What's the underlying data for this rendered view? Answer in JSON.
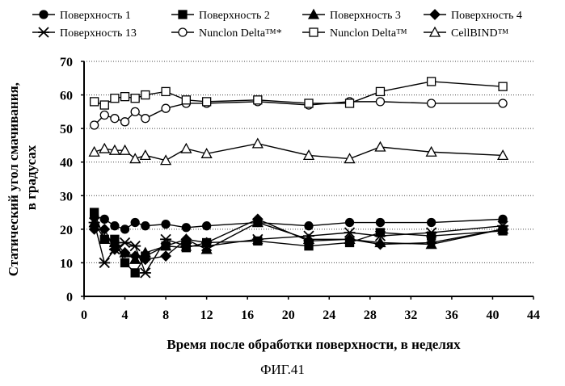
{
  "figure_label": "ФИГ.41",
  "chart_data": {
    "type": "line",
    "title": "",
    "xlabel": "Время после обработки поверхности, в неделях",
    "ylabel": "Статический угол смачивания, в градусах",
    "xlim": [
      0,
      44
    ],
    "ylim": [
      0,
      70
    ],
    "xticks": [
      0,
      4,
      8,
      12,
      16,
      20,
      24,
      28,
      32,
      36,
      40,
      44
    ],
    "yticks": [
      0,
      10,
      20,
      30,
      40,
      50,
      60,
      70
    ],
    "grid": "horizontal dotted",
    "legend_position": "top",
    "series": [
      {
        "name": "Поверхность 1",
        "marker": "circle-filled",
        "x": [
          1,
          2,
          3,
          4,
          5,
          6,
          8,
          10,
          12,
          17,
          22,
          26,
          29,
          34,
          41
        ],
        "y": [
          24,
          23,
          21,
          20,
          22,
          21,
          21.5,
          20.5,
          21,
          22,
          21,
          22,
          22,
          22,
          23
        ]
      },
      {
        "name": "Поверхность 2",
        "marker": "square-filled",
        "x": [
          1,
          2,
          3,
          4,
          5,
          6,
          8,
          10,
          12,
          17,
          22,
          26,
          29,
          34,
          41
        ],
        "y": [
          25,
          17,
          17,
          10,
          7,
          12,
          15,
          14.5,
          16,
          16.5,
          15,
          16,
          19,
          18,
          19.5
        ]
      },
      {
        "name": "Поверхность 3",
        "marker": "triangle-filled",
        "x": [
          1,
          2,
          3,
          4,
          5,
          6,
          8,
          10,
          12,
          17,
          22,
          26,
          29,
          34,
          41
        ],
        "y": [
          22,
          17,
          16,
          13,
          11,
          13,
          15,
          17,
          14,
          22,
          17,
          17,
          16,
          15.5,
          20
        ]
      },
      {
        "name": "Поверхность 4",
        "marker": "diamond-filled",
        "x": [
          1,
          2,
          3,
          4,
          5,
          6,
          8,
          10,
          12,
          17,
          22,
          26,
          29,
          34,
          41
        ],
        "y": [
          20,
          20,
          14,
          13,
          12,
          11,
          12,
          17,
          16,
          23,
          16.5,
          17,
          15.5,
          16,
          20
        ]
      },
      {
        "name": "Поверхность 13",
        "marker": "asterisk",
        "x": [
          1,
          2,
          3,
          4,
          5,
          6,
          8,
          10,
          12,
          17,
          22,
          26,
          29,
          34,
          41
        ],
        "y": [
          22,
          10,
          14,
          16,
          15,
          7,
          17,
          15,
          15,
          17,
          18,
          19,
          18,
          19,
          21
        ]
      },
      {
        "name": "Nunclon Delta™*",
        "marker": "circle-open",
        "x": [
          1,
          2,
          3,
          4,
          5,
          6,
          8,
          10,
          12,
          17,
          22,
          26,
          29,
          34,
          41
        ],
        "y": [
          51,
          54,
          53,
          52,
          55,
          53,
          56,
          57.5,
          57.5,
          58,
          57,
          58,
          58,
          57.5,
          57.5
        ]
      },
      {
        "name": "Nunclon Delta™",
        "marker": "square-open",
        "x": [
          1,
          2,
          3,
          4,
          5,
          6,
          8,
          10,
          12,
          17,
          22,
          26,
          29,
          34,
          41
        ],
        "y": [
          58,
          57,
          59,
          59.5,
          59,
          60,
          61,
          58.5,
          58,
          58.5,
          57.5,
          57.5,
          61,
          64,
          62.5
        ]
      },
      {
        "name": "CellBIND™",
        "marker": "triangle-open",
        "x": [
          1,
          2,
          3,
          4,
          5,
          6,
          8,
          10,
          12,
          17,
          22,
          26,
          29,
          34,
          41
        ],
        "y": [
          43,
          44,
          43.5,
          43.5,
          41,
          42,
          40.5,
          44,
          42.5,
          45.5,
          42,
          41,
          44.5,
          43,
          42
        ]
      }
    ]
  }
}
